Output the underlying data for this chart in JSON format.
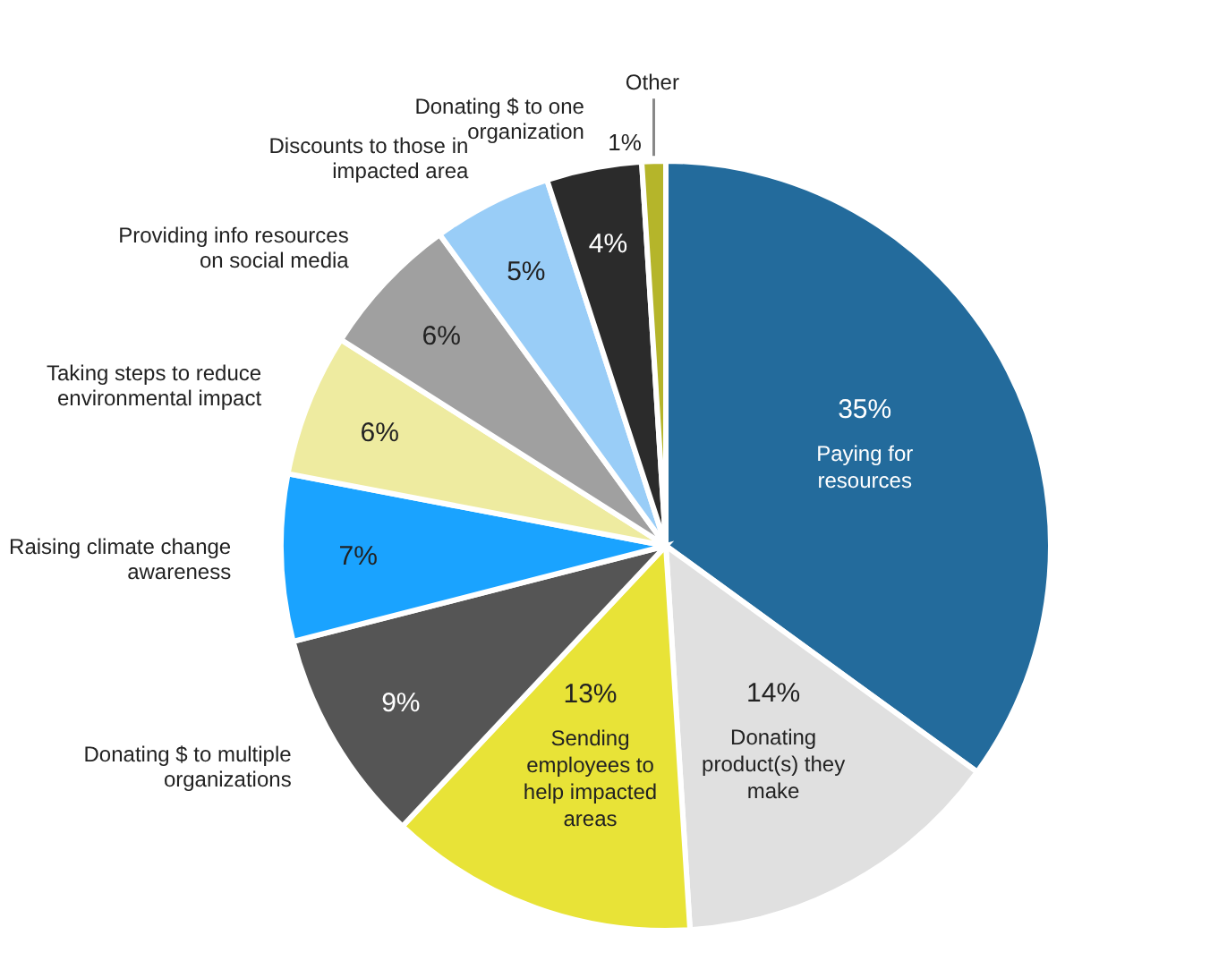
{
  "chart_data": {
    "type": "pie",
    "categories": [
      "Paying for resources",
      "Donating product(s) they make",
      "Sending employees to help impacted areas",
      "Donating $ to multiple organizations",
      "Raising climate change awareness",
      "Taking steps to reduce environmental impact",
      "Providing info resources on social media",
      "Discounts to those in impacted area",
      "Donating $ to one organization",
      "Other"
    ],
    "values": [
      35,
      14,
      13,
      9,
      7,
      6,
      6,
      5,
      4,
      1
    ],
    "colors": [
      "#236b9c",
      "#e0e0e0",
      "#e8e337",
      "#555555",
      "#1aa3ff",
      "#eeeba0",
      "#a0a0a0",
      "#99cdf7",
      "#2b2b2b",
      "#b5b52a"
    ],
    "value_labels": [
      "35%",
      "14%",
      "13%",
      "9%",
      "7%",
      "6%",
      "6%",
      "5%",
      "4%",
      "1%"
    ]
  }
}
